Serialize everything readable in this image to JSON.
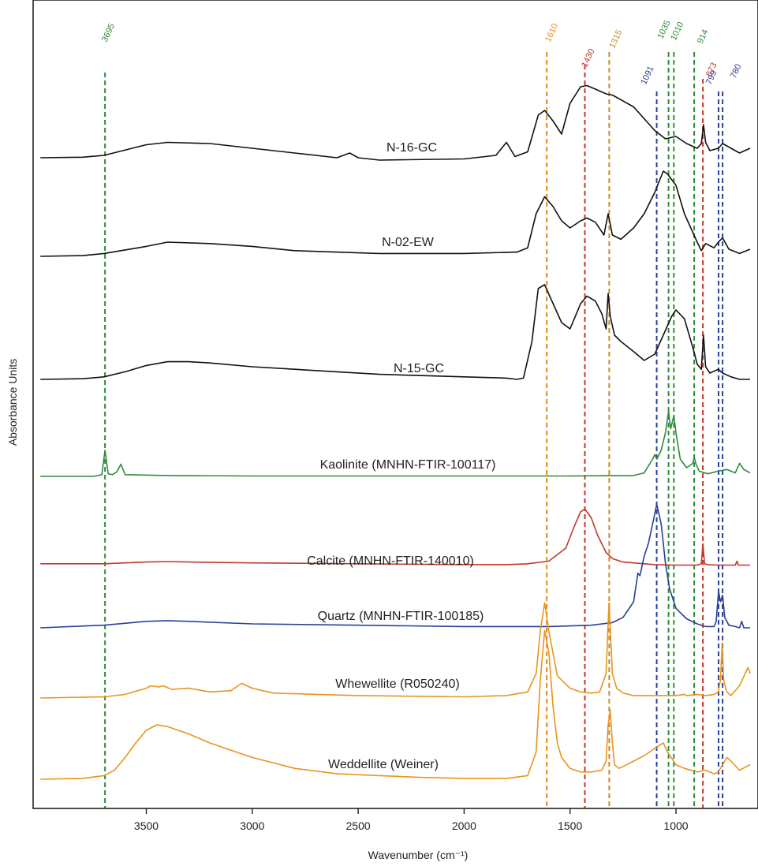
{
  "chart_data": {
    "type": "line",
    "title": "",
    "xlabel": "Wavenumber (cm⁻¹)",
    "ylabel": "Absorbance Units",
    "xlim": [
      4000,
      650
    ],
    "x_reversed": true,
    "xticks": [
      3500,
      3000,
      2500,
      2000,
      1500,
      1000
    ],
    "grid": false,
    "legend": "none (spectra labelled directly)",
    "reference_lines": [
      {
        "label": "3695",
        "x": 3695,
        "color": "#2e8b3d"
      },
      {
        "label": "1610",
        "x": 1610,
        "color": "#e08a1e"
      },
      {
        "label": "1430",
        "x": 1430,
        "color": "#c0392b"
      },
      {
        "label": "1315",
        "x": 1315,
        "color": "#c98a2a"
      },
      {
        "label": "1091",
        "x": 1091,
        "color": "#2a3f9a"
      },
      {
        "label": "1035",
        "x": 1035,
        "color": "#2e8b3d"
      },
      {
        "label": "1010",
        "x": 1010,
        "color": "#2e8b3d"
      },
      {
        "label": "914",
        "x": 914,
        "color": "#2e8b3d"
      },
      {
        "label": "873",
        "x": 873,
        "color": "#c0392b"
      },
      {
        "label": "799",
        "x": 799,
        "color": "#2a3f9a"
      },
      {
        "label": "780",
        "x": 780,
        "color": "#2a3f9a"
      }
    ],
    "series": [
      {
        "name": "N-16-GC",
        "color": "#111111",
        "x": [
          4000,
          3800,
          3700,
          3500,
          3400,
          3200,
          3000,
          2800,
          2600,
          2540,
          2500,
          2400,
          2000,
          1850,
          1800,
          1760,
          1700,
          1650,
          1620,
          1580,
          1540,
          1500,
          1450,
          1420,
          1380,
          1330,
          1300,
          1200,
          1100,
          1050,
          1000,
          950,
          900,
          880,
          870,
          860,
          840,
          800,
          780,
          700,
          650
        ],
        "y": [
          0.02,
          0.025,
          0.04,
          0.13,
          0.15,
          0.14,
          0.1,
          0.06,
          0.02,
          0.06,
          0.02,
          0.0,
          0.01,
          0.04,
          0.15,
          0.03,
          0.07,
          0.38,
          0.42,
          0.33,
          0.22,
          0.48,
          0.62,
          0.63,
          0.6,
          0.56,
          0.55,
          0.45,
          0.25,
          0.18,
          0.2,
          0.14,
          0.1,
          0.14,
          0.3,
          0.15,
          0.08,
          0.1,
          0.14,
          0.06,
          0.1
        ]
      },
      {
        "name": "N-02-EW",
        "color": "#111111",
        "x": [
          4000,
          3800,
          3700,
          3500,
          3400,
          3200,
          3000,
          2800,
          2400,
          2000,
          1750,
          1700,
          1660,
          1620,
          1580,
          1540,
          1500,
          1450,
          1420,
          1380,
          1340,
          1320,
          1300,
          1260,
          1200,
          1150,
          1100,
          1060,
          1040,
          1000,
          960,
          900,
          880,
          860,
          820,
          800,
          780,
          750,
          700,
          650
        ],
        "y": [
          0.0,
          0.005,
          0.02,
          0.07,
          0.1,
          0.09,
          0.07,
          0.04,
          0.02,
          0.02,
          0.03,
          0.06,
          0.3,
          0.42,
          0.35,
          0.25,
          0.2,
          0.25,
          0.27,
          0.24,
          0.15,
          0.3,
          0.15,
          0.12,
          0.2,
          0.3,
          0.45,
          0.6,
          0.58,
          0.5,
          0.3,
          0.1,
          0.04,
          0.09,
          0.06,
          0.1,
          0.13,
          0.05,
          0.02,
          0.05
        ]
      },
      {
        "name": "N-15-GC",
        "color": "#111111",
        "x": [
          4000,
          3800,
          3700,
          3600,
          3500,
          3400,
          3300,
          3200,
          3000,
          2800,
          2600,
          2400,
          2200,
          2000,
          1800,
          1750,
          1720,
          1680,
          1650,
          1620,
          1580,
          1540,
          1500,
          1480,
          1450,
          1420,
          1380,
          1350,
          1330,
          1320,
          1310,
          1290,
          1260,
          1200,
          1150,
          1100,
          1060,
          1020,
          1000,
          960,
          920,
          900,
          880,
          870,
          860,
          840,
          800,
          780,
          740,
          700,
          650
        ],
        "y": [
          0.0,
          0.005,
          0.02,
          0.06,
          0.11,
          0.14,
          0.14,
          0.13,
          0.1,
          0.08,
          0.06,
          0.04,
          0.03,
          0.02,
          0.01,
          0.0,
          0.01,
          0.3,
          0.72,
          0.75,
          0.6,
          0.45,
          0.4,
          0.48,
          0.6,
          0.66,
          0.62,
          0.52,
          0.4,
          0.68,
          0.5,
          0.35,
          0.3,
          0.22,
          0.15,
          0.2,
          0.35,
          0.5,
          0.55,
          0.48,
          0.25,
          0.12,
          0.08,
          0.35,
          0.1,
          0.05,
          0.08,
          0.05,
          0.02,
          0.0,
          0.0
        ]
      },
      {
        "name": "Kaolinite (MNHN-FTIR-100117)",
        "color": "#2e8b3d",
        "x": [
          4000,
          3750,
          3710,
          3695,
          3680,
          3660,
          3640,
          3620,
          3600,
          3400,
          3000,
          2500,
          2000,
          1500,
          1200,
          1150,
          1110,
          1100,
          1090,
          1070,
          1050,
          1035,
          1025,
          1010,
          1000,
          980,
          950,
          920,
          914,
          905,
          890,
          850,
          800,
          760,
          720,
          700,
          680,
          650
        ],
        "y": [
          0.0,
          0.0,
          0.02,
          0.3,
          0.03,
          0.02,
          0.05,
          0.14,
          0.02,
          0.01,
          0.005,
          0.005,
          0.005,
          0.005,
          0.01,
          0.04,
          0.2,
          0.25,
          0.2,
          0.3,
          0.5,
          0.75,
          0.55,
          0.7,
          0.5,
          0.2,
          0.1,
          0.15,
          0.22,
          0.14,
          0.06,
          0.03,
          0.06,
          0.08,
          0.04,
          0.15,
          0.08,
          0.04
        ]
      },
      {
        "name": "Calcite (MNHN-FTIR-140010)",
        "color": "#c0392b",
        "x": [
          4000,
          3700,
          3500,
          3400,
          3300,
          3000,
          2500,
          2000,
          1800,
          1700,
          1600,
          1520,
          1480,
          1450,
          1430,
          1400,
          1370,
          1330,
          1300,
          1250,
          1200,
          1100,
          1000,
          900,
          880,
          873,
          865,
          850,
          800,
          720,
          712,
          705,
          680,
          650
        ],
        "y": [
          0.02,
          0.02,
          0.04,
          0.045,
          0.04,
          0.03,
          0.02,
          0.01,
          0.01,
          0.02,
          0.05,
          0.2,
          0.45,
          0.62,
          0.65,
          0.55,
          0.35,
          0.15,
          0.08,
          0.04,
          0.03,
          0.01,
          0.005,
          0.005,
          0.02,
          0.25,
          0.02,
          0.01,
          0.005,
          0.005,
          0.05,
          0.005,
          0.005,
          0.005
        ]
      },
      {
        "name": "Quartz (MNHN-FTIR-100185)",
        "color": "#2a3f9a",
        "x": [
          4000,
          3700,
          3500,
          3400,
          3300,
          3000,
          2500,
          2000,
          1600,
          1400,
          1300,
          1250,
          1200,
          1180,
          1170,
          1150,
          1130,
          1110,
          1091,
          1070,
          1050,
          1030,
          1000,
          950,
          900,
          860,
          820,
          810,
          799,
          790,
          780,
          770,
          750,
          720,
          700,
          690,
          680,
          650
        ],
        "y": [
          0.0,
          0.02,
          0.05,
          0.055,
          0.05,
          0.03,
          0.02,
          0.01,
          0.01,
          0.02,
          0.04,
          0.08,
          0.2,
          0.42,
          0.4,
          0.55,
          0.65,
          0.8,
          0.95,
          0.8,
          0.5,
          0.3,
          0.15,
          0.07,
          0.03,
          0.01,
          0.01,
          0.05,
          0.28,
          0.2,
          0.25,
          0.08,
          0.02,
          0.01,
          0.0,
          0.05,
          0.0,
          0.0
        ]
      },
      {
        "name": "Whewellite (R050240)",
        "color": "#e8951e",
        "x": [
          4000,
          3700,
          3600,
          3500,
          3480,
          3440,
          3420,
          3380,
          3300,
          3200,
          3100,
          3050,
          3000,
          2900,
          2500,
          2000,
          1800,
          1700,
          1660,
          1640,
          1620,
          1600,
          1560,
          1500,
          1450,
          1400,
          1360,
          1330,
          1316,
          1300,
          1280,
          1250,
          1200,
          1100,
          1000,
          960,
          950,
          900,
          860,
          820,
          800,
          790,
          782,
          775,
          760,
          740,
          700,
          660,
          650
        ],
        "y": [
          0.0,
          0.01,
          0.03,
          0.08,
          0.1,
          0.09,
          0.1,
          0.07,
          0.08,
          0.05,
          0.06,
          0.12,
          0.08,
          0.04,
          0.02,
          0.01,
          0.02,
          0.05,
          0.2,
          0.55,
          0.78,
          0.55,
          0.18,
          0.08,
          0.05,
          0.04,
          0.05,
          0.2,
          0.78,
          0.2,
          0.08,
          0.04,
          0.02,
          0.02,
          0.02,
          0.03,
          0.02,
          0.03,
          0.02,
          0.03,
          0.05,
          0.15,
          0.45,
          0.15,
          0.05,
          0.02,
          0.1,
          0.25,
          0.2
        ]
      },
      {
        "name": "Weddellite (Weiner)",
        "color": "#e8951e",
        "x": [
          4000,
          3800,
          3700,
          3650,
          3600,
          3550,
          3500,
          3450,
          3400,
          3300,
          3200,
          3100,
          3000,
          2800,
          2600,
          2400,
          2200,
          2000,
          1800,
          1700,
          1660,
          1640,
          1620,
          1600,
          1580,
          1560,
          1540,
          1500,
          1450,
          1400,
          1350,
          1330,
          1320,
          1310,
          1300,
          1290,
          1270,
          1250,
          1200,
          1150,
          1100,
          1060,
          1040,
          1000,
          960,
          900,
          860,
          820,
          800,
          780,
          760,
          740,
          700,
          650
        ],
        "y": [
          0.0,
          0.005,
          0.02,
          0.05,
          0.12,
          0.2,
          0.27,
          0.3,
          0.29,
          0.25,
          0.2,
          0.16,
          0.12,
          0.06,
          0.03,
          0.02,
          0.01,
          0.005,
          0.005,
          0.02,
          0.15,
          0.55,
          0.82,
          0.7,
          0.4,
          0.2,
          0.12,
          0.06,
          0.04,
          0.04,
          0.05,
          0.1,
          0.3,
          0.38,
          0.2,
          0.08,
          0.06,
          0.07,
          0.1,
          0.13,
          0.17,
          0.2,
          0.15,
          0.08,
          0.06,
          0.04,
          0.05,
          0.03,
          0.04,
          0.08,
          0.12,
          0.1,
          0.05,
          0.08
        ]
      }
    ]
  }
}
